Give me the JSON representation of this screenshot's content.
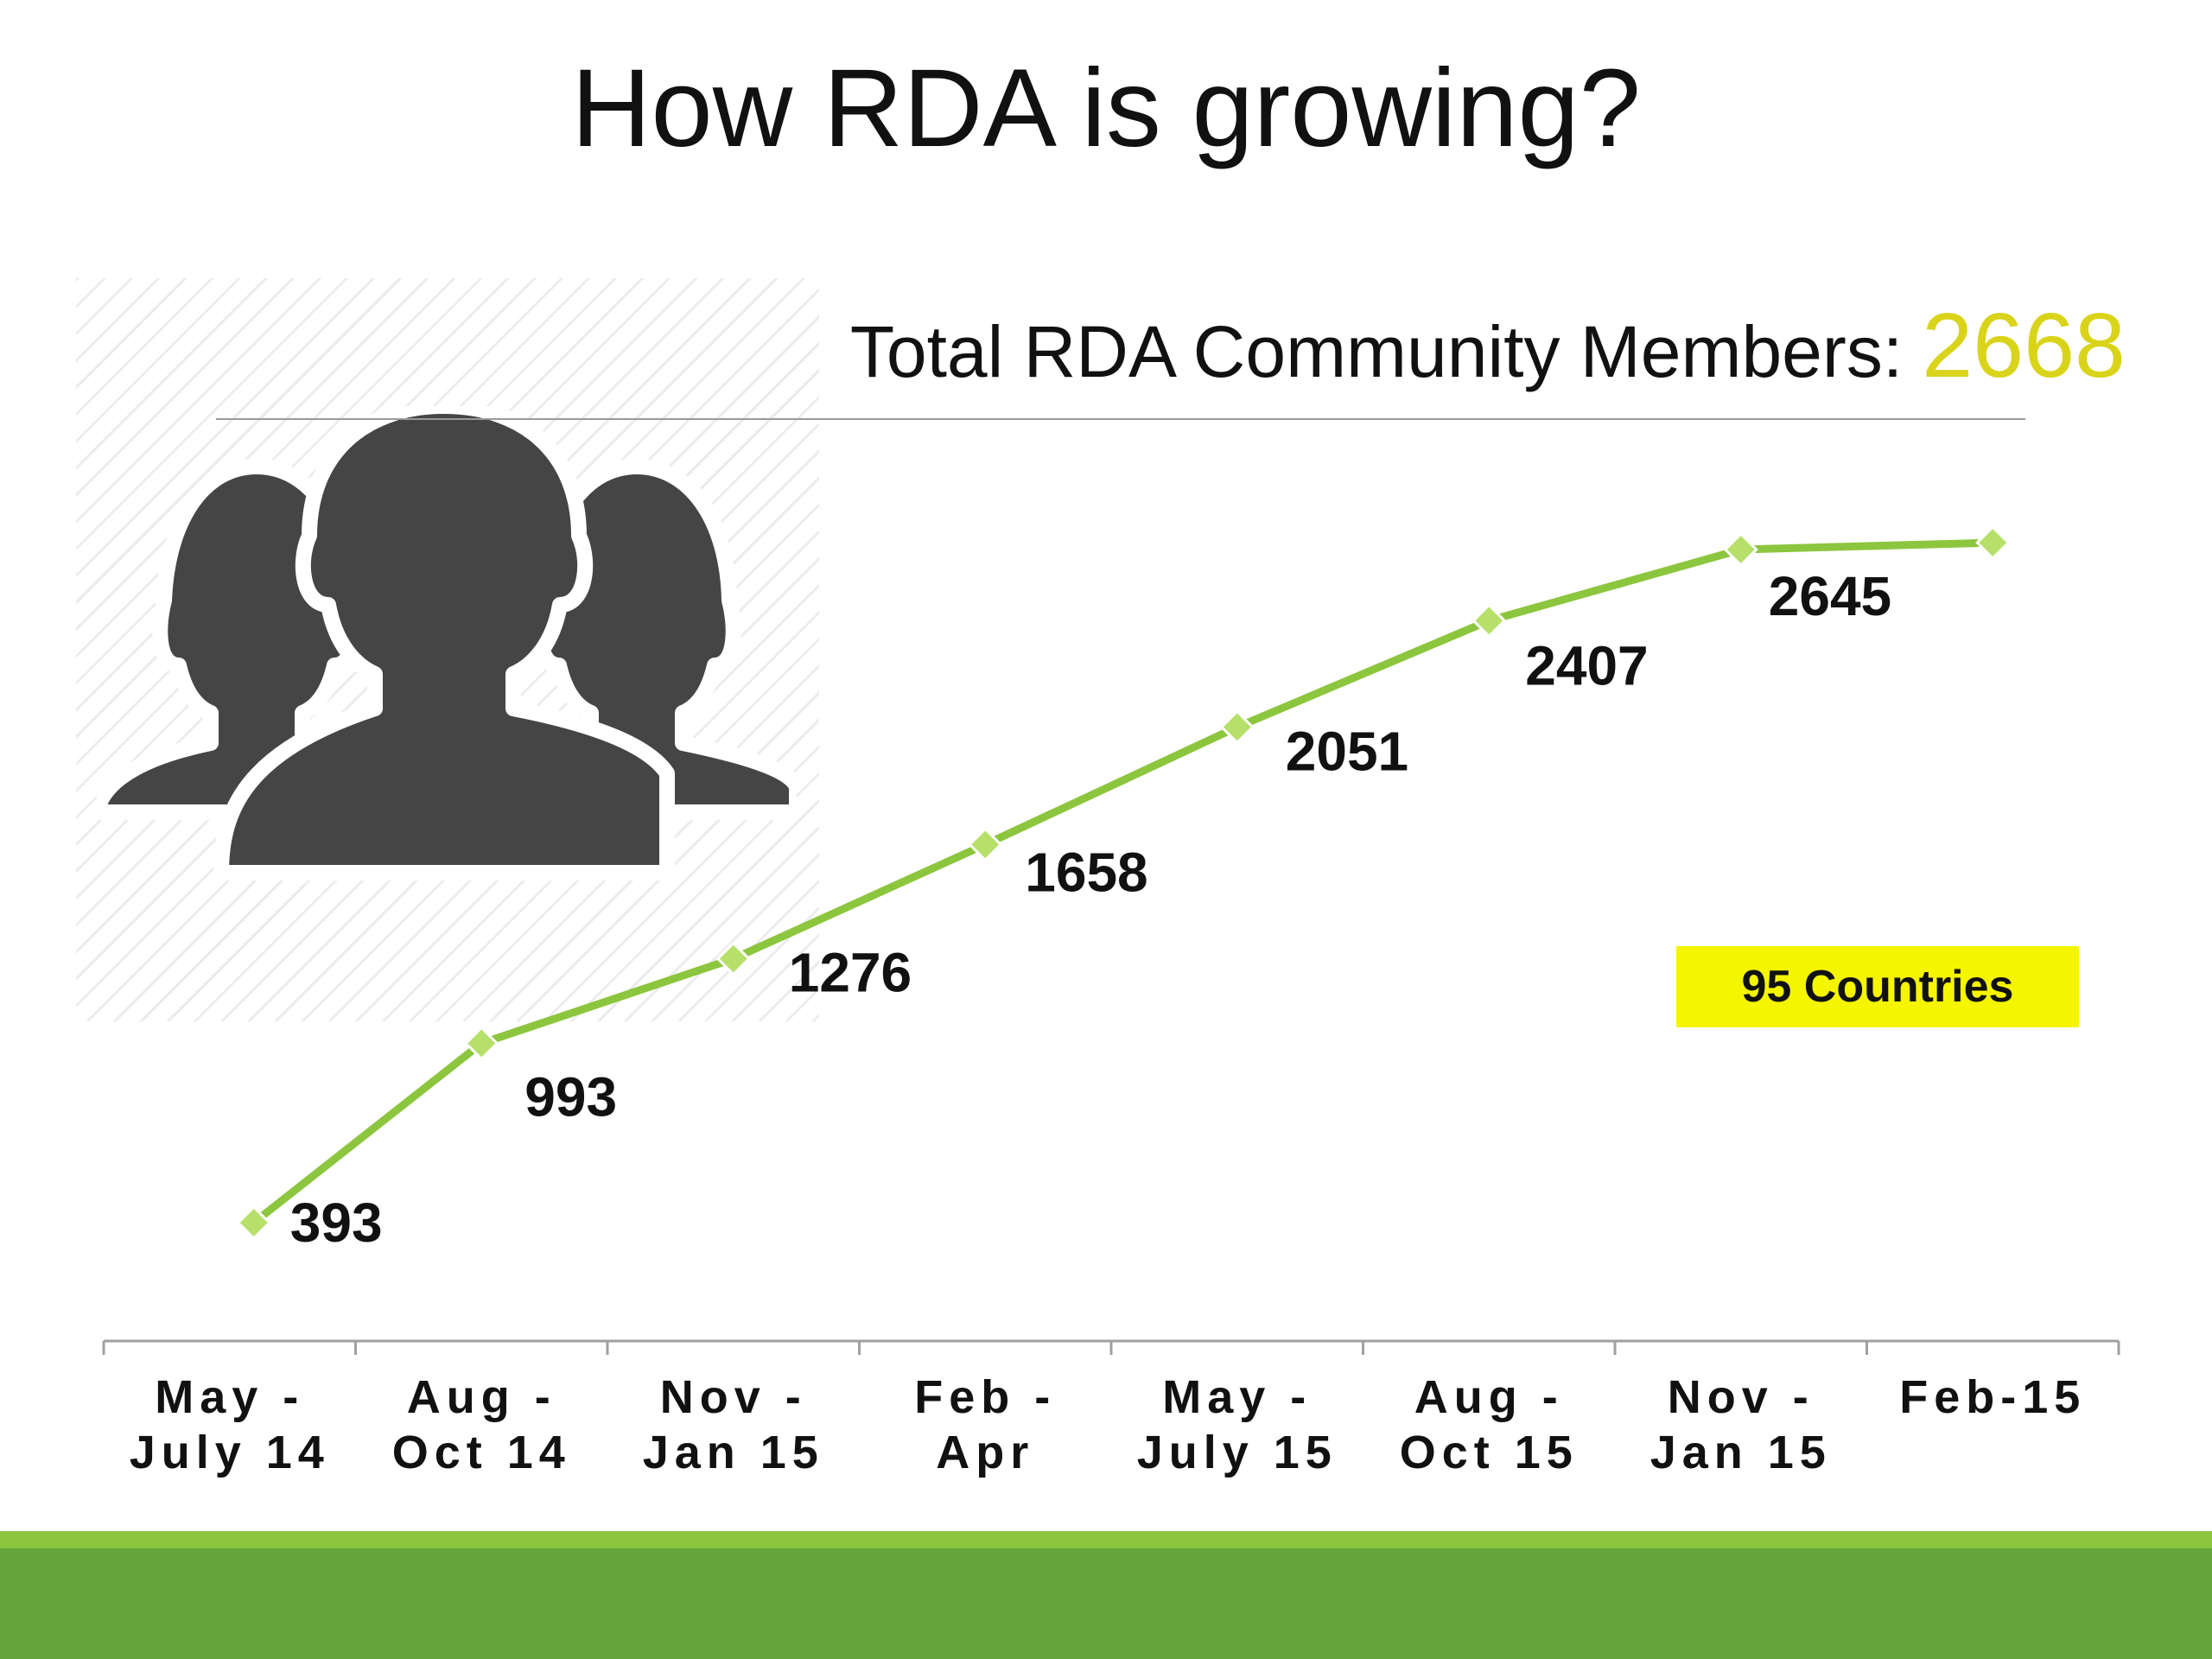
{
  "slide": {
    "title": "How RDA is growing?",
    "total_label": "Total RDA Community Members:",
    "total_value": "2668",
    "badge": "95 Countries",
    "icon": "people-group-icon"
  },
  "colors": {
    "line": "#8cc63e",
    "marker_fill": "#b6e06a",
    "highlight_number": "#d9d41a",
    "badge_bg": "#f5f500",
    "icon": "#454545",
    "band_light": "#8cc63e",
    "band_dark": "#65a43a"
  },
  "chart_data": {
    "type": "line",
    "title": "",
    "xlabel": "",
    "ylabel": "",
    "categories": [
      [
        "May -",
        "July 14"
      ],
      [
        "Aug -",
        "Oct 14"
      ],
      [
        "Nov -",
        "Jan 15"
      ],
      [
        "Feb -",
        "Apr"
      ],
      [
        "May -",
        "July 15"
      ],
      [
        "Aug -",
        "Oct 15"
      ],
      [
        "Nov -",
        "Jan 15"
      ],
      [
        "Feb-15"
      ]
    ],
    "values": [
      393,
      993,
      1276,
      1658,
      2051,
      2407,
      2645,
      2668
    ],
    "data_labels": [
      "393",
      "993",
      "1276",
      "1658",
      "2051",
      "2407",
      "2645",
      ""
    ],
    "ylim": [
      0,
      2800
    ],
    "grid": false,
    "legend": "none"
  }
}
